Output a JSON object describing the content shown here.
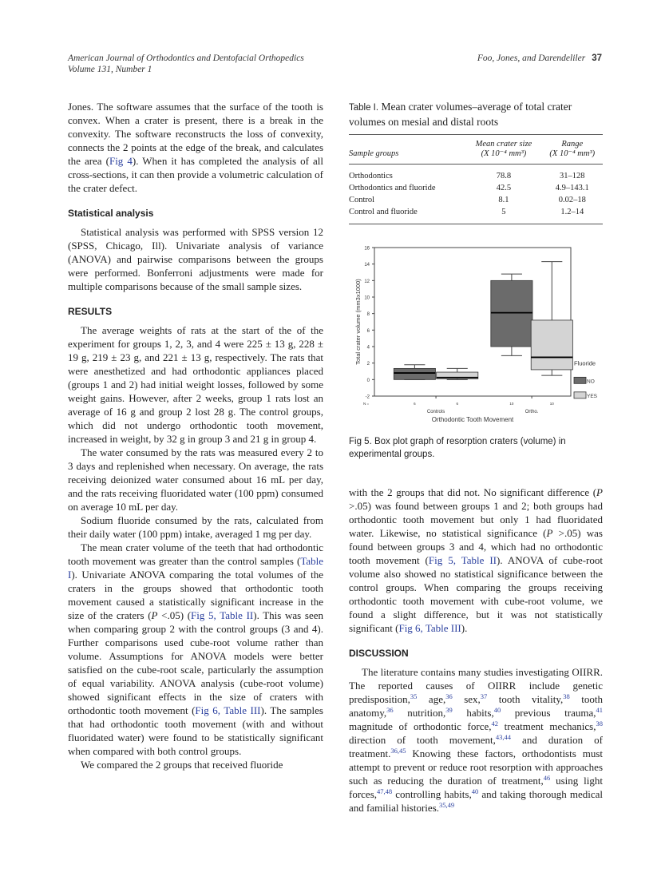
{
  "header": {
    "journal": "American Journal of Orthodontics and Dentofacial Orthopedics",
    "volume": "Volume 131, Number 1",
    "authors": "Foo, Jones, and Darendeliler",
    "page": "37"
  },
  "left_column": [
    {
      "type": "p",
      "indent": false,
      "segs": [
        "Jones. The software assumes that the surface of the tooth is convex. When a crater is present, there is a break in the convexity. The software reconstructs the loss of convexity, connects the 2 points at the edge of the break, and calculates the area (",
        {
          "link": "Fig 4"
        },
        "). When it has completed the analysis of all cross-sections, it can then provide a volumetric calculation of the crater defect."
      ]
    },
    {
      "type": "h",
      "text": "Statistical analysis"
    },
    {
      "type": "p",
      "indent": true,
      "segs": [
        "Statistical analysis was performed with SPSS version 12 (SPSS, Chicago, Ill). Univariate analysis of variance (ANOVA) and pairwise comparisons between the groups were performed. Bonferroni adjustments were made for multiple comparisons because of the small sample sizes."
      ]
    },
    {
      "type": "h",
      "text": "RESULTS"
    },
    {
      "type": "p",
      "indent": true,
      "segs": [
        "The average weights of rats at the start of the of the experiment for groups 1, 2, 3, and 4 were 225 ± 13 g, 228 ± 19 g, 219 ± 23 g, and 221 ± 13 g, respectively. The rats that were anesthetized and had orthodontic appliances placed (groups 1 and 2) had initial weight losses, followed by some weight gains. However, after 2 weeks, group 1 rats lost an average of 16 g and group 2 lost 28 g. The control groups, which did not undergo orthodontic tooth movement, increased in weight, by 32 g in group 3 and 21 g in group 4."
      ]
    },
    {
      "type": "p",
      "indent": true,
      "segs": [
        "The water consumed by the rats was measured every 2 to 3 days and replenished when necessary. On average, the rats receiving deionized water consumed about 16 mL per day, and the rats receiving fluoridated water (100 ppm) consumed on average 10 mL per day."
      ]
    },
    {
      "type": "p",
      "indent": true,
      "segs": [
        "Sodium fluoride consumed by the rats, calculated from their daily water (100 ppm) intake, averaged 1 mg per day."
      ]
    },
    {
      "type": "p",
      "indent": true,
      "segs": [
        "The mean crater volume of the teeth that had orthodontic tooth movement was greater than the control samples (",
        {
          "link": "Table I"
        },
        "). Univariate ANOVA comparing the total volumes of the craters in the groups showed that orthodontic tooth movement caused a statistically significant increase in the size of the craters (",
        {
          "i": "P"
        },
        " <.05) (",
        {
          "link": "Fig 5, Table II"
        },
        "). This was seen when comparing group 2 with the control groups (3 and 4). Further comparisons used cube-root volume rather than volume. Assumptions for ANOVA models were better satisfied on the cube-root scale, particularly the assumption of equal variability. ANOVA analysis (cube-root volume) showed significant effects in the size of craters with orthodontic tooth movement (",
        {
          "link": "Fig 6, Table III"
        },
        "). The samples that had orthodontic tooth movement (with and without fluoridated water) were found to be statistically significant when compared with both control groups."
      ]
    },
    {
      "type": "p",
      "indent": true,
      "segs": [
        "We compared the 2 groups that received fluoride"
      ]
    }
  ],
  "right_column": [
    {
      "type": "p",
      "indent": false,
      "segs": [
        "with the 2 groups that did not. No significant difference (",
        {
          "i": "P"
        },
        " >.05) was found between groups 1 and 2; both groups had orthodontic tooth movement but only 1 had fluoridated water. Likewise, no statistical significance (",
        {
          "i": "P"
        },
        " >.05) was found between groups 3 and 4, which had no orthodontic tooth movement (",
        {
          "link": "Fig 5, Table II"
        },
        "). ANOVA of cube-root volume also showed no statistical significance between the control groups. When comparing the groups receiving orthodontic tooth movement with cube-root volume, we found a slight difference, but it was not statistically significant (",
        {
          "link": "Fig 6, Table III"
        },
        ")."
      ]
    },
    {
      "type": "h",
      "text": "DISCUSSION"
    },
    {
      "type": "p",
      "indent": true,
      "segs": [
        "The literature contains many studies investigating OIIRR. The reported causes of OIIRR include genetic predisposition,",
        {
          "sup": "35"
        },
        " age,",
        {
          "sup": "36"
        },
        " sex,",
        {
          "sup": "37"
        },
        " tooth vitality,",
        {
          "sup": "38"
        },
        " tooth anatomy,",
        {
          "sup": "36"
        },
        " nutrition,",
        {
          "sup": "39"
        },
        " habits,",
        {
          "sup": "40"
        },
        " previous trauma,",
        {
          "sup": "41"
        },
        " magnitude of orthodontic force,",
        {
          "sup": "42"
        },
        " treatment mechanics,",
        {
          "sup": "38"
        },
        " direction of tooth movement,",
        {
          "sup": "43,44"
        },
        " and duration of treatment.",
        {
          "sup": "36,45"
        },
        " Knowing these factors, orthodontists must attempt to prevent or reduce root resorption with approaches such as reducing the duration of treatment,",
        {
          "sup": "46"
        },
        " using light forces,",
        {
          "sup": "47,48"
        },
        " controlling habits,",
        {
          "sup": "40"
        },
        " and taking thorough medical and familial histories.",
        {
          "sup": "35,49"
        }
      ]
    }
  ],
  "table1": {
    "label": "Table I.",
    "title": "Mean crater volumes–average of total crater volumes on mesial and distal roots",
    "headers": [
      "Sample groups",
      "Mean crater size",
      "(X 10⁻⁴ mm³)",
      "Range",
      "(X 10⁻⁴ mm³)"
    ],
    "rows": [
      [
        "Orthodontics",
        "78.8",
        "31–128"
      ],
      [
        "Orthodontics and fluoride",
        "42.5",
        "4.9–143.1"
      ],
      [
        "Control",
        "8.1",
        "0.02–18"
      ],
      [
        "Control and fluoride",
        "5",
        "1.2–14"
      ]
    ]
  },
  "figure": {
    "label": "Fig 5.",
    "caption": "Box plot graph of resorption craters (volume) in experimental groups."
  },
  "chart_data": {
    "type": "boxplot",
    "xlabel": "Orthodontic Tooth Movement",
    "ylabel": "Total crater volume (mm3x1000)",
    "ylim": [
      -2,
      16
    ],
    "yticks": [
      "-2",
      "0",
      "2",
      "4",
      "6",
      "8",
      "10",
      "12",
      "14",
      "16"
    ],
    "categories": [
      "Controls",
      "Ortho."
    ],
    "n_label": "N =",
    "legend": {
      "title": "Fluoride",
      "placement": "right",
      "entries": [
        {
          "name": "NO",
          "color": "#6b6b6b"
        },
        {
          "name": "YES",
          "color": "#d4d4d4"
        }
      ]
    },
    "boxes": [
      {
        "category": "Controls",
        "group": "NO",
        "n": "6",
        "min": 0,
        "q1": 0,
        "median": 0.8,
        "q3": 1.35,
        "max": 1.8
      },
      {
        "category": "Controls",
        "group": "YES",
        "n": "6",
        "min": 0,
        "q1": 0.1,
        "median": 0.25,
        "q3": 0.9,
        "max": 1.35
      },
      {
        "category": "Ortho.",
        "group": "NO",
        "n": "10",
        "min": 2.9,
        "q1": 4,
        "median": 8.1,
        "q3": 12,
        "max": 12.8
      },
      {
        "category": "Ortho.",
        "group": "YES",
        "n": "10",
        "min": 0.5,
        "q1": 1.2,
        "median": 2.7,
        "q3": 7.2,
        "max": 14.3
      }
    ]
  }
}
